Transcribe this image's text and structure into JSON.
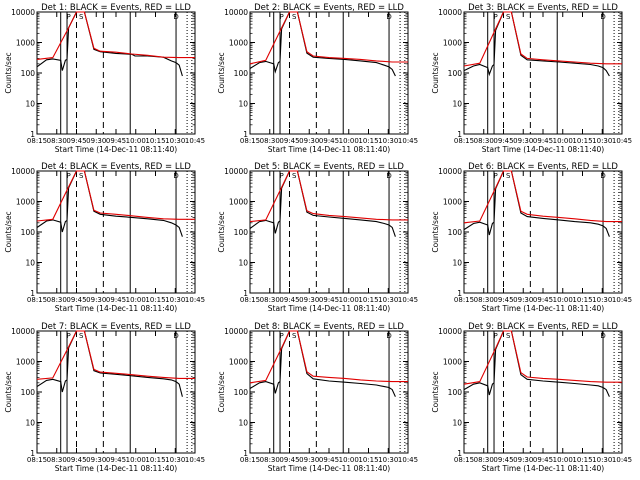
{
  "chart_data": {
    "type": "line",
    "layout": "3x3 grid of panels",
    "colors": {
      "events": "#000000",
      "lld": "#e00000",
      "background": "#ffffff"
    },
    "common": {
      "xlabel": "Start Time (14-Dec-11 08:11:40)",
      "ylabel": "Counts/sec",
      "y_scale": "log",
      "ylim": [
        1,
        10000
      ],
      "ytick_labels": [
        "1",
        "10",
        "100",
        "1000",
        "10000"
      ],
      "xtick_labels": [
        "08:15",
        "08:30",
        "09:45",
        "09:30",
        "09:45",
        "10:00",
        "10:15",
        "10:30",
        "10:45"
      ],
      "grid": false,
      "legend": "none",
      "marker_labels": [
        "P",
        "S",
        "D"
      ]
    },
    "panels": [
      {
        "title": "Det 1: BLACK = Events, RED = LLD",
        "xtick_labels": [
          "08:15",
          "08:30",
          "09:45",
          "09:30",
          "09:45",
          "10:00",
          "10:15",
          "10:30",
          "10:45"
        ],
        "series": [
          {
            "name": "Events",
            "x": [
              0,
              0.06,
              0.1,
              0.15,
              0.16,
              0.18,
              0.19,
              0.2,
              0.25,
              0.3,
              0.36,
              0.4,
              0.5,
              0.6,
              0.62,
              0.7,
              0.8,
              0.85,
              0.88,
              0.9,
              0.92
            ],
            "y": [
              160,
              270,
              290,
              260,
              120,
              260,
              280,
              3000,
              10000,
              10000,
              600,
              500,
              440,
              410,
              360,
              360,
              330,
              250,
              220,
              180,
              80
            ]
          },
          {
            "name": "LLD",
            "x": [
              0,
              0.1,
              0.2,
              0.25,
              0.3,
              0.36,
              0.4,
              0.5,
              0.6,
              0.7,
              0.8,
              0.9,
              1.0
            ],
            "y": [
              280,
              320,
              3000,
              10000,
              10000,
              650,
              520,
              480,
              420,
              380,
              330,
              320,
              320
            ]
          }
        ]
      },
      {
        "title": "Det 2: BLACK = Events, RED = LLD",
        "xtick_labels": [
          "08:15",
          "08:30",
          "09:45",
          "09:30",
          "09:45",
          "10:00",
          "10:15",
          "10:30",
          "10:45"
        ],
        "series": [
          {
            "name": "Events",
            "x": [
              0,
              0.06,
              0.1,
              0.15,
              0.16,
              0.18,
              0.19,
              0.2,
              0.25,
              0.3,
              0.36,
              0.4,
              0.5,
              0.6,
              0.7,
              0.8,
              0.85,
              0.88,
              0.9,
              0.92
            ],
            "y": [
              140,
              220,
              240,
              200,
              110,
              220,
              240,
              2800,
              10000,
              10000,
              450,
              330,
              300,
              280,
              250,
              220,
              180,
              160,
              130,
              80
            ]
          },
          {
            "name": "LLD",
            "x": [
              0,
              0.1,
              0.2,
              0.25,
              0.3,
              0.36,
              0.4,
              0.5,
              0.6,
              0.7,
              0.8,
              0.9,
              1.0
            ],
            "y": [
              200,
              260,
              3000,
              10000,
              10000,
              500,
              360,
              320,
              300,
              280,
              250,
              230,
              230
            ]
          }
        ]
      },
      {
        "title": "Det 3: BLACK = Events, RED = LLD",
        "xtick_labels": [
          "08:15",
          "08:30",
          "09:45",
          "09:30",
          "09:45",
          "10:00",
          "10:15",
          "10:30",
          "10:45"
        ],
        "series": [
          {
            "name": "Events",
            "x": [
              0,
              0.06,
              0.1,
              0.15,
              0.16,
              0.18,
              0.19,
              0.2,
              0.25,
              0.3,
              0.36,
              0.4,
              0.5,
              0.6,
              0.7,
              0.8,
              0.85,
              0.88,
              0.9,
              0.92
            ],
            "y": [
              120,
              170,
              190,
              150,
              90,
              170,
              190,
              2500,
              10000,
              10000,
              380,
              270,
              250,
              230,
              210,
              190,
              170,
              150,
              120,
              80
            ]
          },
          {
            "name": "LLD",
            "x": [
              0,
              0.1,
              0.2,
              0.25,
              0.3,
              0.36,
              0.4,
              0.5,
              0.6,
              0.7,
              0.8,
              0.9,
              1.0
            ],
            "y": [
              170,
              210,
              2800,
              10000,
              10000,
              420,
              300,
              270,
              250,
              230,
              210,
              200,
              200
            ]
          }
        ]
      },
      {
        "title": "Det 4: BLACK = Events, RED = LLD",
        "xtick_labels": [
          "08:15",
          "08:30",
          "09:45",
          "09:30",
          "09:45",
          "10:00",
          "10:15",
          "10:30",
          "10:45"
        ],
        "series": [
          {
            "name": "Events",
            "x": [
              0,
              0.06,
              0.1,
              0.15,
              0.16,
              0.18,
              0.19,
              0.2,
              0.25,
              0.3,
              0.36,
              0.4,
              0.5,
              0.6,
              0.7,
              0.8,
              0.85,
              0.88,
              0.9,
              0.92
            ],
            "y": [
              140,
              230,
              250,
              210,
              100,
              220,
              240,
              2800,
              10000,
              10000,
              480,
              380,
              330,
              300,
              270,
              240,
              200,
              170,
              140,
              70
            ]
          },
          {
            "name": "LLD",
            "x": [
              0,
              0.1,
              0.2,
              0.25,
              0.3,
              0.36,
              0.4,
              0.5,
              0.6,
              0.7,
              0.8,
              0.9,
              1.0
            ],
            "y": [
              230,
              260,
              3000,
              10000,
              10000,
              520,
              420,
              380,
              340,
              300,
              270,
              260,
              260
            ]
          }
        ]
      },
      {
        "title": "Det 5: BLACK = Events, RED = LLD",
        "xtick_labels": [
          "08:15",
          "08:30",
          "09:45",
          "09:30",
          "09:45",
          "10:00",
          "10:15",
          "10:30",
          "10:45"
        ],
        "series": [
          {
            "name": "Events",
            "x": [
              0,
              0.06,
              0.1,
              0.15,
              0.16,
              0.18,
              0.19,
              0.2,
              0.25,
              0.3,
              0.36,
              0.4,
              0.5,
              0.6,
              0.7,
              0.8,
              0.85,
              0.88,
              0.9,
              0.92
            ],
            "y": [
              130,
              220,
              240,
              200,
              90,
              210,
              230,
              2700,
              10000,
              10000,
              450,
              350,
              310,
              280,
              250,
              220,
              190,
              170,
              140,
              70
            ]
          },
          {
            "name": "LLD",
            "x": [
              0,
              0.1,
              0.2,
              0.25,
              0.3,
              0.36,
              0.4,
              0.5,
              0.6,
              0.7,
              0.8,
              0.9,
              1.0
            ],
            "y": [
              220,
              250,
              2900,
              10000,
              10000,
              500,
              400,
              350,
              320,
              290,
              260,
              250,
              250
            ]
          }
        ]
      },
      {
        "title": "Det 6: BLACK = Events, RED = LLD",
        "xtick_labels": [
          "08:15",
          "08:30",
          "09:45",
          "09:30",
          "09:45",
          "10:00",
          "10:15",
          "10:30",
          "10:45"
        ],
        "series": [
          {
            "name": "Events",
            "x": [
              0,
              0.06,
              0.1,
              0.15,
              0.16,
              0.18,
              0.19,
              0.2,
              0.25,
              0.3,
              0.36,
              0.4,
              0.5,
              0.6,
              0.7,
              0.8,
              0.85,
              0.88,
              0.9,
              0.92
            ],
            "y": [
              120,
              190,
              210,
              170,
              80,
              190,
              210,
              2600,
              10000,
              10000,
              420,
              320,
              280,
              250,
              220,
              200,
              180,
              160,
              130,
              70
            ]
          },
          {
            "name": "LLD",
            "x": [
              0,
              0.1,
              0.2,
              0.25,
              0.3,
              0.36,
              0.4,
              0.5,
              0.6,
              0.7,
              0.8,
              0.9,
              1.0
            ],
            "y": [
              200,
              230,
              2800,
              10000,
              10000,
              480,
              380,
              330,
              300,
              270,
              240,
              220,
              220
            ]
          }
        ]
      },
      {
        "title": "Det 7: BLACK = Events, RED = LLD",
        "xtick_labels": [
          "08:15",
          "08:30",
          "09:45",
          "09:30",
          "09:45",
          "10:00",
          "10:15",
          "10:30",
          "10:45"
        ],
        "series": [
          {
            "name": "Events",
            "x": [
              0,
              0.06,
              0.1,
              0.15,
              0.16,
              0.18,
              0.19,
              0.2,
              0.25,
              0.3,
              0.36,
              0.4,
              0.5,
              0.6,
              0.7,
              0.8,
              0.85,
              0.88,
              0.9,
              0.92
            ],
            "y": [
              150,
              240,
              260,
              220,
              100,
              230,
              250,
              2800,
              10000,
              10000,
              500,
              420,
              380,
              340,
              300,
              270,
              250,
              220,
              180,
              70
            ]
          },
          {
            "name": "LLD",
            "x": [
              0,
              0.1,
              0.2,
              0.25,
              0.3,
              0.36,
              0.4,
              0.5,
              0.6,
              0.7,
              0.8,
              0.9,
              1.0
            ],
            "y": [
              260,
              290,
              3000,
              10000,
              10000,
              550,
              450,
              410,
              370,
              330,
              300,
              280,
              280
            ]
          }
        ]
      },
      {
        "title": "Det 8: BLACK = Events, RED = LLD",
        "xtick_labels": [
          "08:15",
          "08:30",
          "09:45",
          "09:30",
          "09:45",
          "10:00",
          "10:15",
          "10:30",
          "10:45"
        ],
        "series": [
          {
            "name": "Events",
            "x": [
              0,
              0.06,
              0.1,
              0.15,
              0.16,
              0.18,
              0.19,
              0.2,
              0.25,
              0.3,
              0.36,
              0.4,
              0.5,
              0.6,
              0.7,
              0.8,
              0.85,
              0.88,
              0.9,
              0.92
            ],
            "y": [
              130,
              200,
              220,
              180,
              90,
              200,
              220,
              2600,
              10000,
              10000,
              400,
              270,
              230,
              210,
              190,
              170,
              150,
              140,
              120,
              70
            ]
          },
          {
            "name": "LLD",
            "x": [
              0,
              0.1,
              0.2,
              0.25,
              0.3,
              0.36,
              0.4,
              0.5,
              0.6,
              0.7,
              0.8,
              0.9,
              1.0
            ],
            "y": [
              200,
              240,
              2800,
              10000,
              10000,
              460,
              330,
              300,
              280,
              250,
              230,
              220,
              220
            ]
          }
        ]
      },
      {
        "title": "Det 9: BLACK = Events, RED = LLD",
        "xtick_labels": [
          "08:15",
          "08:30",
          "09:45",
          "09:30",
          "09:45",
          "10:00",
          "10:15",
          "10:30",
          "10:45"
        ],
        "series": [
          {
            "name": "Events",
            "x": [
              0,
              0.06,
              0.1,
              0.15,
              0.16,
              0.18,
              0.19,
              0.2,
              0.25,
              0.3,
              0.36,
              0.4,
              0.5,
              0.6,
              0.7,
              0.8,
              0.85,
              0.88,
              0.9,
              0.92
            ],
            "y": [
              120,
              180,
              200,
              160,
              80,
              180,
              200,
              2500,
              10000,
              10000,
              370,
              260,
              230,
              210,
              190,
              170,
              160,
              140,
              120,
              70
            ]
          },
          {
            "name": "LLD",
            "x": [
              0,
              0.1,
              0.2,
              0.25,
              0.3,
              0.36,
              0.4,
              0.5,
              0.6,
              0.7,
              0.8,
              0.9,
              1.0
            ],
            "y": [
              180,
              220,
              2700,
              10000,
              10000,
              430,
              310,
              280,
              260,
              240,
              220,
              210,
              210
            ]
          }
        ]
      }
    ]
  }
}
